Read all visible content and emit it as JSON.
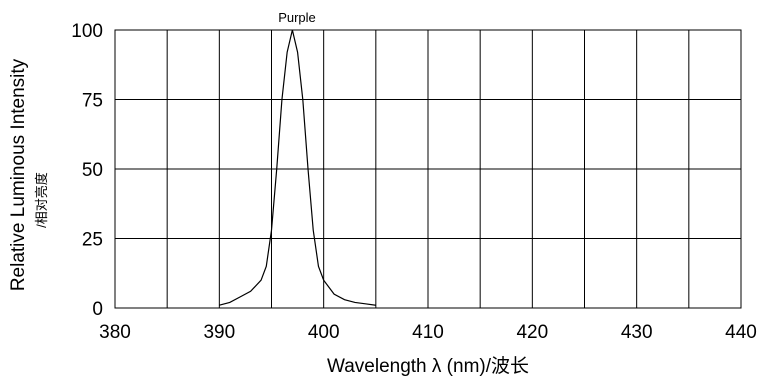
{
  "chart_data": {
    "type": "line",
    "annotation": "Purple",
    "xlabel": "Wavelength  λ (nm)/波长",
    "ylabel": "Relative Luminous Intensity",
    "ylabel_secondary": "/相对亮度",
    "xlim": [
      380,
      440
    ],
    "ylim": [
      0,
      100
    ],
    "x_ticks": [
      380,
      390,
      400,
      410,
      420,
      430,
      440
    ],
    "y_ticks": [
      0,
      25,
      50,
      75,
      100
    ],
    "x_gridlines": [
      380,
      385,
      390,
      395,
      400,
      405,
      410,
      415,
      420,
      425,
      430,
      435,
      440
    ],
    "grid": true,
    "colors": {
      "line": "#000000",
      "grid": "#000000",
      "background": "#ffffff"
    },
    "series": [
      {
        "x": [
          390,
          391,
          392,
          393,
          394,
          394.5,
          395,
          395.5,
          396,
          396.5,
          397,
          397.5,
          398,
          398.5,
          399,
          399.5,
          400,
          401,
          402,
          403,
          404,
          405
        ],
        "values": [
          1,
          2,
          4,
          6,
          10,
          15,
          28,
          50,
          75,
          92,
          100,
          92,
          75,
          50,
          28,
          15,
          10,
          5,
          3,
          2,
          1.5,
          1
        ]
      }
    ]
  }
}
